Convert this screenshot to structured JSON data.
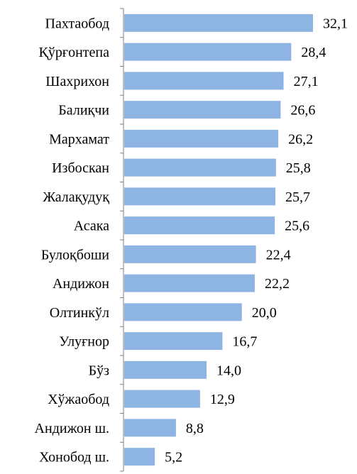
{
  "chart_data": {
    "type": "bar",
    "orientation": "horizontal",
    "categories": [
      "Пахтаобод",
      "Қўрғонтепа",
      "Шахрихон",
      "Балиқчи",
      "Мархамат",
      "Избоскан",
      "Жалақудуқ",
      "Асака",
      "Булоқбоши",
      "Андижон",
      "Олтинкўл",
      "Улуғнор",
      "Бўз",
      "Хўжаобод",
      "Андижон ш.",
      "Хонобод ш."
    ],
    "values": [
      32.1,
      28.4,
      27.1,
      26.6,
      26.2,
      25.8,
      25.7,
      25.6,
      22.4,
      22.2,
      20.0,
      16.7,
      14.0,
      12.9,
      8.8,
      5.2
    ],
    "value_labels": [
      "32,1",
      "28,4",
      "27,1",
      "26,6",
      "26,2",
      "25,8",
      "25,7",
      "25,6",
      "22,4",
      "22,2",
      "20,0",
      "16,7",
      "14,0",
      "12,9",
      "8,8",
      "5,2"
    ],
    "bar_color": "#8eb4e3",
    "grid": false,
    "legend": "none"
  }
}
